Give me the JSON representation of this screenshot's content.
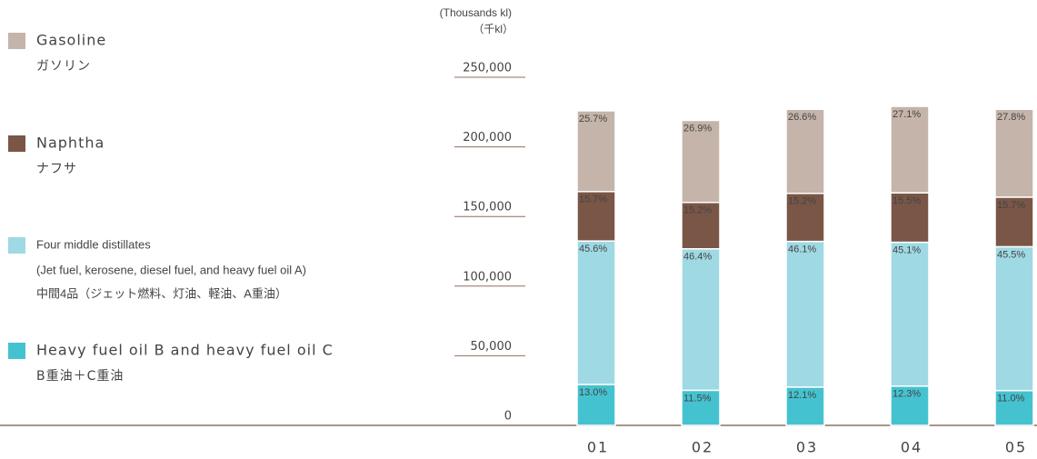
{
  "chart_data": {
    "type": "stacked_bar",
    "unit_labels": [
      "(Thousands kl)",
      "（千kl）"
    ],
    "categories": [
      "01",
      "02",
      "03",
      "04",
      "05"
    ],
    "ylim": [
      0,
      250000
    ],
    "yticks": [
      0,
      {
        "value": 50000,
        "label": "50,000"
      },
      {
        "value": 100000,
        "label": "100,000"
      },
      {
        "value": 150000,
        "label": "150,000"
      },
      {
        "value": 200000,
        "label": "200,000"
      },
      {
        "value": 250000,
        "label": "250,000"
      }
    ],
    "series": [
      {
        "name": "Heavy fuel oil B and heavy fuel oil C",
        "description": [
          "B重油＋C重油"
        ],
        "color": "#45c2d0",
        "label_color": "#ffffff",
        "values": [
          29400,
          25200,
          27500,
          28200,
          25000
        ],
        "value_labels": [
          "13.0%",
          "11.5%",
          "12.1%",
          "12.3%",
          "11.0%"
        ]
      },
      {
        "name": "Four middle distillates",
        "description": [
          "(Jet fuel, kerosene, diesel fuel, and heavy fuel oil A)",
          "中間4品（ジェット燃料、灯油、軽油、A重油）"
        ],
        "color": "#9fd9e3",
        "label_color": "#30b8c9",
        "values": [
          103000,
          101600,
          104600,
          103300,
          103300
        ],
        "value_labels": [
          "45.6%",
          "46.4%",
          "46.1%",
          "45.1%",
          "45.5%"
        ]
      },
      {
        "name": "Naphtha",
        "description": [
          "ナフサ"
        ],
        "color": "#7a5646",
        "label_color": "#ffffff",
        "values": [
          35500,
          33300,
          34500,
          35500,
          35600
        ],
        "value_labels": [
          "15.7%",
          "15.2%",
          "15.2%",
          "15.5%",
          "15.7%"
        ]
      },
      {
        "name": "Gasoline",
        "description": [
          "ガソリン"
        ],
        "color": "#c5b4a9",
        "label_color": "#6b4c3c",
        "values": [
          58000,
          58900,
          60400,
          62100,
          63100
        ],
        "value_labels": [
          "25.7%",
          "26.9%",
          "26.6%",
          "27.1%",
          "27.8%"
        ]
      }
    ]
  }
}
